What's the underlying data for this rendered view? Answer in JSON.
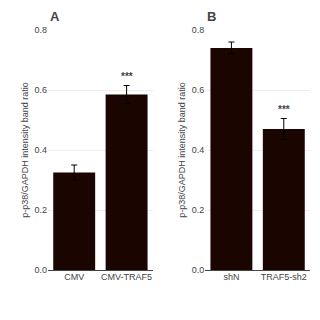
{
  "chart_data": [
    {
      "type": "bar",
      "title": "A",
      "categories": [
        "CMV",
        "CMV-TRAF5"
      ],
      "values": [
        0.325,
        0.585
      ],
      "errors": [
        0.025,
        0.03
      ],
      "color": "#1a0500",
      "ylabel": "p-p38/GAPDH intensity band ratio",
      "ylim": [
        0,
        0.8
      ],
      "yticks": [
        {
          "value": 0,
          "label": "0.0"
        },
        0.2,
        0.4,
        0.6,
        0.8
      ],
      "annotations": [
        {
          "text": "***",
          "category": "CMV-TRAF5"
        }
      ]
    },
    {
      "type": "bar",
      "title": "B",
      "categories": [
        "shN",
        "TRAF5-sh2"
      ],
      "values": [
        0.74,
        0.47
      ],
      "errors": [
        0.02,
        0.035
      ],
      "color": "#1a0500",
      "ylabel": "p-p38/GAPDH intensity band ratio",
      "ylim": [
        0,
        0.8
      ],
      "yticks": [
        {
          "value": 0,
          "label": "0.0"
        },
        0.2,
        0.4,
        0.6,
        0.8
      ],
      "annotations": [
        {
          "text": "***",
          "category": "TRAF5-sh2"
        }
      ]
    }
  ]
}
